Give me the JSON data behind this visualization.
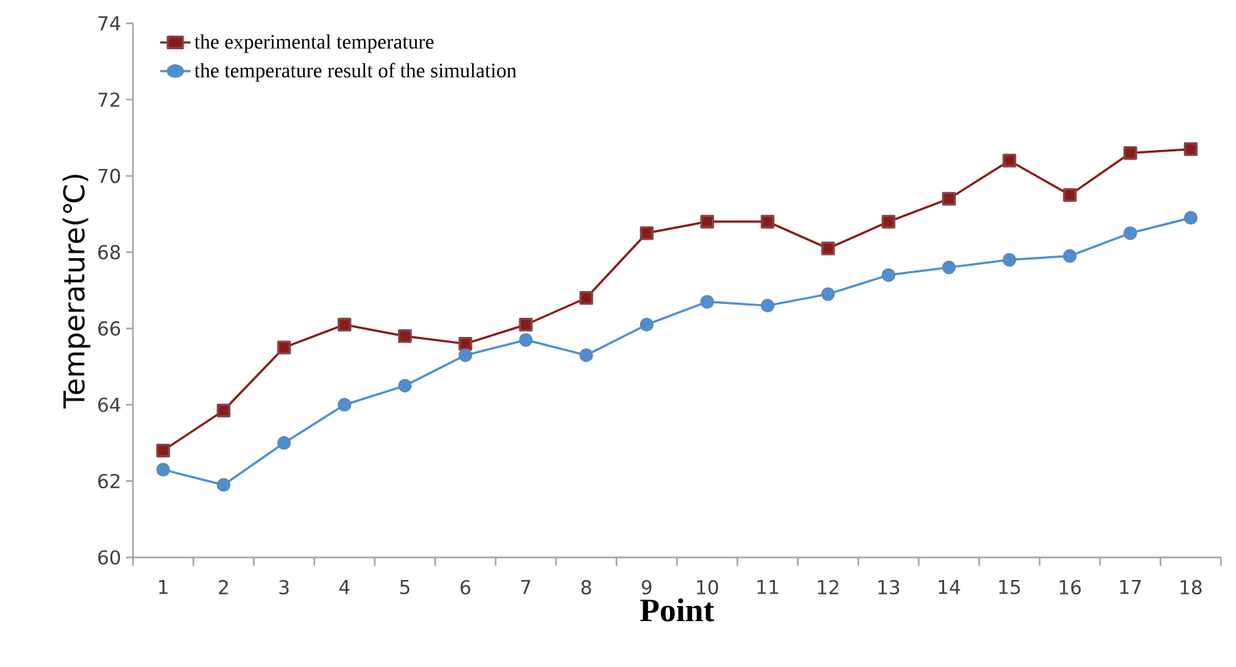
{
  "chart_data": {
    "type": "line",
    "xlabel": "Point",
    "ylabel": "Temperature(℃)",
    "categories": [
      "1",
      "2",
      "3",
      "4",
      "5",
      "6",
      "7",
      "8",
      "9",
      "10",
      "11",
      "12",
      "13",
      "14",
      "15",
      "16",
      "17",
      "18"
    ],
    "series": [
      {
        "name": "the experimental temperature",
        "color": "#8b1a1a",
        "marker": "square",
        "values": [
          62.8,
          63.85,
          65.5,
          66.1,
          65.8,
          65.6,
          66.1,
          66.8,
          68.5,
          68.8,
          68.8,
          68.1,
          68.8,
          69.4,
          70.4,
          69.5,
          70.6,
          70.7
        ]
      },
      {
        "name": "the temperature result of the simulation",
        "color": "#4a90d9",
        "marker": "circle",
        "values": [
          62.3,
          61.9,
          63.0,
          64.0,
          64.5,
          65.3,
          65.7,
          65.3,
          66.1,
          66.7,
          66.6,
          66.9,
          67.4,
          67.6,
          67.8,
          67.9,
          68.5,
          68.9
        ]
      }
    ],
    "ylim": [
      60,
      74
    ],
    "yticks": [
      60,
      62,
      64,
      66,
      68,
      70,
      72,
      74
    ],
    "grid": false,
    "legend": "top left",
    "line_style": "solid"
  }
}
